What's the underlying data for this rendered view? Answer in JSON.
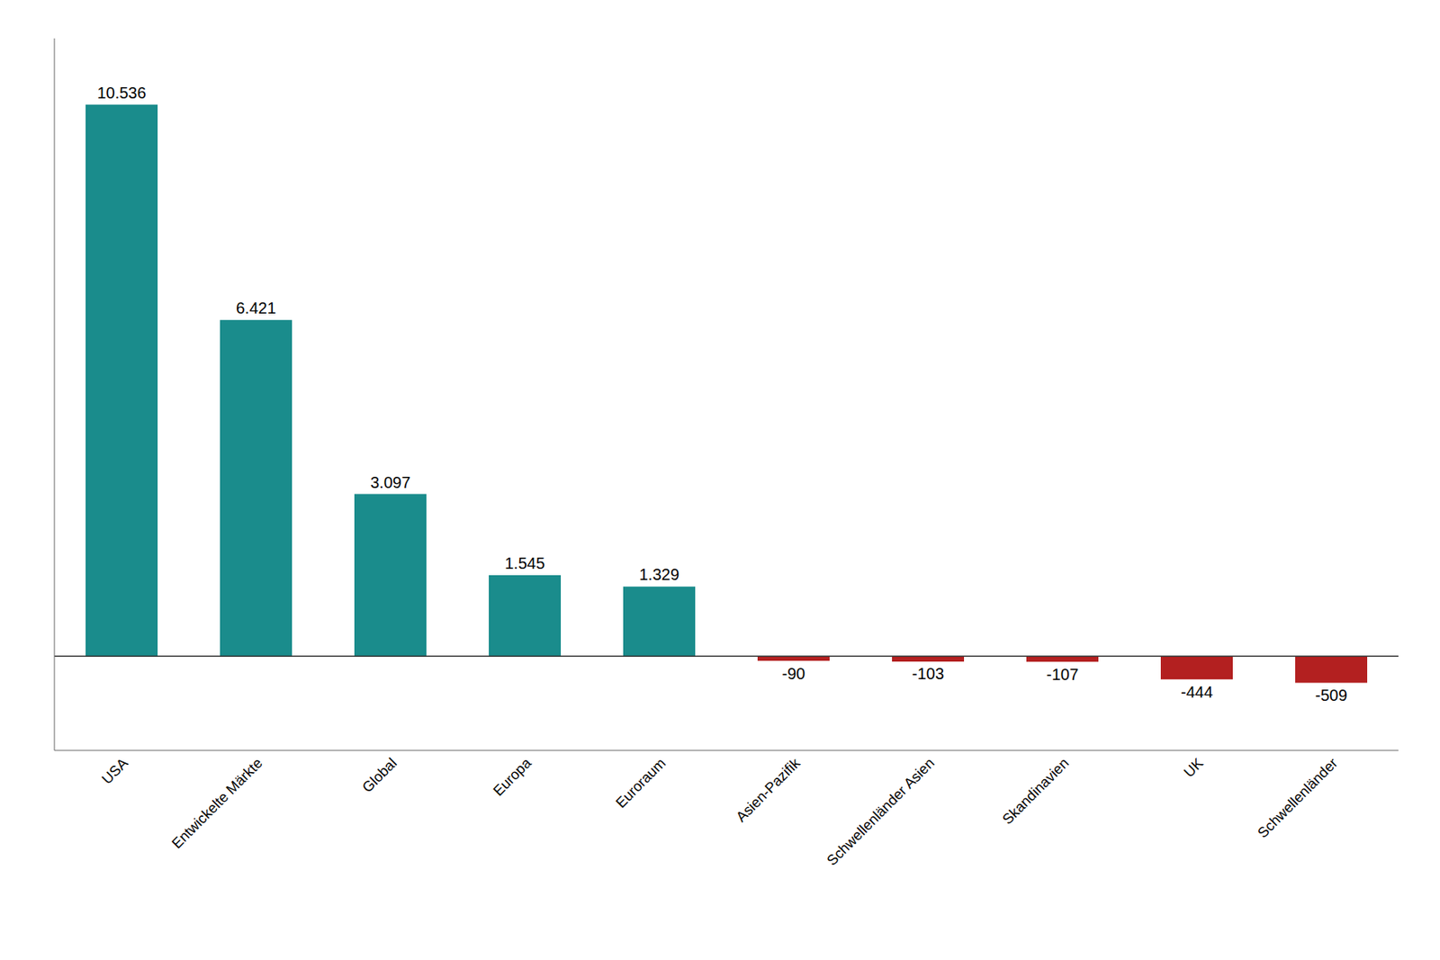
{
  "chart_data": {
    "type": "bar",
    "categories": [
      "USA",
      "Entwickelte Märkte",
      "Global",
      "Europa",
      "Euroraum",
      "Asien-Pazifik",
      "Schwellenländer Asien",
      "Skandinavien",
      "UK",
      "Schwellenländer"
    ],
    "values": [
      10536,
      6421,
      3097,
      1545,
      1329,
      -90,
      -103,
      -107,
      -444,
      -509
    ],
    "value_labels": [
      "10.536",
      "6.421",
      "3.097",
      "1.545",
      "1.329",
      "-90",
      "-103",
      "-107",
      "-444",
      "-509"
    ],
    "colors": [
      "#1A8C8C",
      "#1A8C8C",
      "#1A8C8C",
      "#1A8C8C",
      "#1A8C8C",
      "#B32020",
      "#B32020",
      "#B32020",
      "#B32020",
      "#B32020"
    ],
    "ylim": [
      -1800,
      11800
    ],
    "grid": false,
    "data_labels": true,
    "tick_labels": "x"
  }
}
